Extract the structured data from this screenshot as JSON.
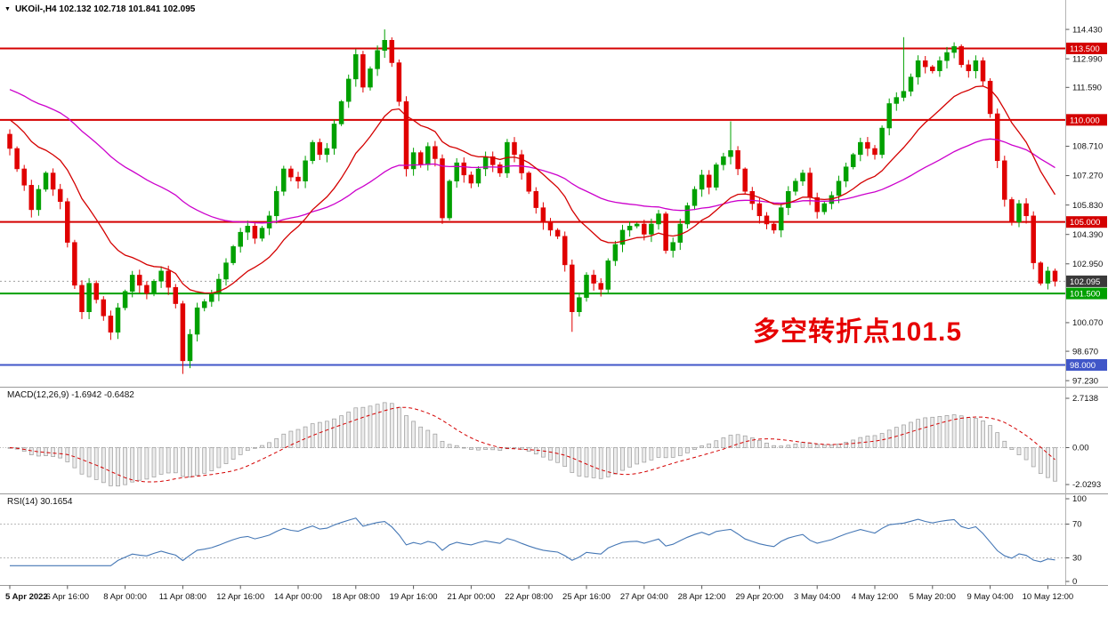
{
  "header": {
    "dropdown_icon": "▼",
    "symbol_line": "UKOil-,H4  102.132 102.718 101.841 102.095"
  },
  "indicator_labels": {
    "macd": "MACD(12,26,9) -1.6942 -0.6482",
    "rsi": "RSI(14) 30.1654"
  },
  "annotation": {
    "text": "多空转折点101.5",
    "color": "#e60000"
  },
  "chart_data": {
    "type": "candlestick",
    "symbol": "UKOil-",
    "timeframe": "H4",
    "ohlc": {
      "open": "102.132",
      "high": "102.718",
      "low": "101.841",
      "close": "102.095"
    },
    "indicators": {
      "macd": {
        "params": [
          12,
          26,
          9
        ],
        "value": -1.6942,
        "signal_value": -0.6482
      },
      "rsi": {
        "period": 14,
        "value": 30.1654
      },
      "ma_fast_color_note": "red",
      "ma_slow_color_note": "magenta"
    },
    "colors": {
      "up": "#00a000",
      "down": "#e00000",
      "ma_fast": "#d40000",
      "ma_slow": "#cc00cc",
      "macd_signal": "#d40000",
      "macd_histogram": "#ececec",
      "macd_histogram_border": "#9a9a9a",
      "rsi": "#4577b5",
      "level_red": "#d40000",
      "level_green": "#00a000",
      "level_blue": "#4056c8"
    },
    "first_open": 109.3,
    "ma_fast_seed": 110.2,
    "ma_slow_seed": 111.6,
    "closes": [
      108.6,
      107.6,
      106.8,
      105.6,
      106.6,
      107.4,
      106.6,
      106.0,
      104.0,
      101.9,
      100.6,
      102.0,
      101.2,
      100.4,
      99.6,
      100.8,
      101.6,
      102.4,
      101.9,
      101.5,
      102.1,
      102.6,
      101.8,
      101.0,
      98.2,
      99.5,
      100.8,
      101.1,
      101.5,
      102.2,
      103.0,
      103.8,
      104.5,
      104.8,
      104.2,
      104.7,
      105.3,
      106.5,
      107.6,
      107.2,
      107.0,
      108.0,
      108.9,
      108.3,
      108.6,
      109.8,
      110.9,
      112.0,
      113.2,
      111.6,
      112.5,
      113.4,
      113.9,
      112.8,
      110.9,
      107.6,
      108.4,
      107.8,
      108.7,
      108.1,
      105.2,
      107.0,
      107.9,
      107.3,
      106.9,
      107.6,
      108.2,
      107.8,
      107.4,
      108.9,
      108.3,
      107.4,
      106.5,
      105.7,
      105.0,
      104.6,
      104.3,
      102.9,
      100.6,
      101.3,
      102.4,
      102.0,
      101.7,
      103.1,
      103.9,
      104.6,
      104.8,
      104.9,
      104.4,
      104.9,
      105.4,
      103.6,
      104.0,
      104.9,
      105.8,
      106.6,
      107.3,
      106.7,
      107.8,
      108.2,
      108.5,
      107.6,
      106.5,
      105.9,
      105.3,
      104.9,
      104.6,
      105.7,
      106.5,
      107.0,
      107.4,
      106.2,
      105.5,
      105.9,
      106.3,
      107.0,
      107.7,
      108.3,
      108.9,
      108.6,
      108.3,
      109.6,
      110.8,
      111.1,
      111.4,
      112.1,
      112.9,
      112.6,
      112.4,
      112.9,
      113.3,
      113.6,
      112.7,
      112.4,
      112.9,
      111.9,
      110.3,
      108.0,
      106.1,
      105.0,
      105.9,
      105.3,
      103.0,
      102.0,
      102.6,
      102.095
    ],
    "wicks": [
      {
        "bar": 24,
        "low": 97.56
      },
      {
        "bar": 52,
        "high": 114.43
      },
      {
        "bar": 78,
        "low": 99.62
      },
      {
        "bar": 100,
        "high": 109.93
      },
      {
        "bar": 124,
        "high": 114.05
      },
      {
        "bar": 145,
        "high": 102.718,
        "low": 101.841
      }
    ],
    "levels": [
      {
        "price": 113.5,
        "color": "#d40000",
        "width": 2
      },
      {
        "price": 110.0,
        "color": "#d40000",
        "width": 2
      },
      {
        "price": 105.0,
        "color": "#d40000",
        "width": 2
      },
      {
        "price": 101.5,
        "color": "#00a000",
        "width": 2
      },
      {
        "price": 98.0,
        "color": "#4056c8",
        "width": 2
      }
    ],
    "current_price_line": {
      "price": 102.095,
      "color": "#a0a0a0"
    },
    "price_axis": {
      "ticks": [
        "114.430",
        "112.990",
        "111.590",
        "108.710",
        "107.270",
        "105.830",
        "104.390",
        "102.950",
        "100.070",
        "98.670",
        "97.230"
      ],
      "badges": [
        {
          "label": "113.500",
          "color": "#d40000"
        },
        {
          "label": "110.000",
          "color": "#d40000"
        },
        {
          "label": "105.000",
          "color": "#d40000"
        },
        {
          "label": "102.095",
          "color": "#3a3a3a"
        },
        {
          "label": "101.500",
          "color": "#00a000"
        },
        {
          "label": "98.000",
          "color": "#4056c8"
        }
      ]
    },
    "macd_axis": {
      "max": "2.7138",
      "zero": "0.00",
      "min": "-2.0293"
    },
    "rsi_axis": {
      "ticks": [
        "100",
        "70",
        "30",
        "0"
      ],
      "dashed_levels": [
        70,
        30
      ]
    },
    "time_axis": [
      {
        "bar": 0,
        "label": "5 Apr 2022"
      },
      {
        "bar": 8,
        "label": "6 Apr 16:00"
      },
      {
        "bar": 16,
        "label": "8 Apr 00:00"
      },
      {
        "bar": 24,
        "label": "11 Apr 08:00"
      },
      {
        "bar": 32,
        "label": "12 Apr 16:00"
      },
      {
        "bar": 40,
        "label": "14 Apr 00:00"
      },
      {
        "bar": 48,
        "label": "18 Apr 08:00"
      },
      {
        "bar": 56,
        "label": "19 Apr 16:00"
      },
      {
        "bar": 64,
        "label": "21 Apr 00:00"
      },
      {
        "bar": 72,
        "label": "22 Apr 08:00"
      },
      {
        "bar": 80,
        "label": "25 Apr 16:00"
      },
      {
        "bar": 88,
        "label": "27 Apr 04:00"
      },
      {
        "bar": 96,
        "label": "28 Apr 12:00"
      },
      {
        "bar": 104,
        "label": "29 Apr 20:00"
      },
      {
        "bar": 112,
        "label": "3 May 04:00"
      },
      {
        "bar": 120,
        "label": "4 May 12:00"
      },
      {
        "bar": 128,
        "label": "5 May 20:00"
      },
      {
        "bar": 136,
        "label": "9 May 04:00"
      },
      {
        "bar": 144,
        "label": "10 May 12:00"
      }
    ]
  }
}
